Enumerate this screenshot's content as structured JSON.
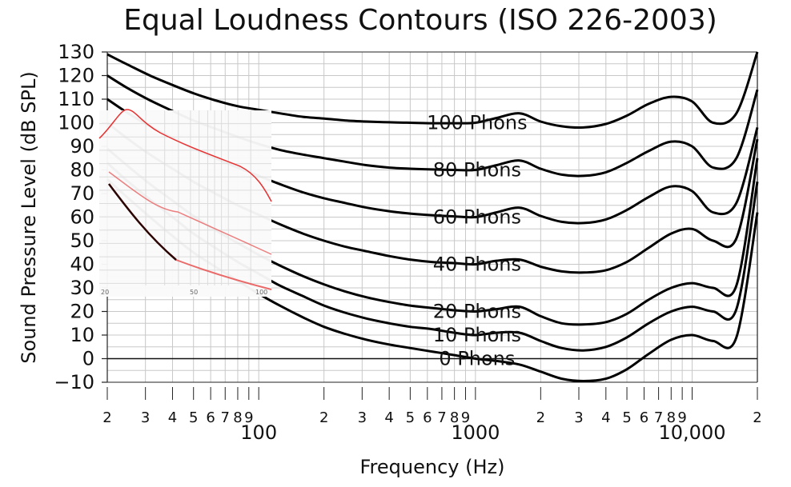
{
  "chart_data": {
    "type": "line",
    "title": "Equal Loudness Contours (ISO 226-2003)",
    "xlabel": "Frequency (Hz)",
    "ylabel": "Sound Pressure Level (dB SPL)",
    "x_scale": "log",
    "xlim": [
      20,
      20000
    ],
    "ylim": [
      -10,
      130
    ],
    "y_ticks": [
      "130",
      "120",
      "110",
      "100",
      "90",
      "80",
      "70",
      "60",
      "50",
      "40",
      "30",
      "20",
      "10",
      "0",
      "−10"
    ],
    "x_tick_labels": [
      {
        "x": 20,
        "label": "2",
        "major": false
      },
      {
        "x": 30,
        "label": "3",
        "major": false
      },
      {
        "x": 40,
        "label": "4",
        "major": false
      },
      {
        "x": 50,
        "label": "5",
        "major": false
      },
      {
        "x": 60,
        "label": "6",
        "major": false
      },
      {
        "x": 70,
        "label": "7",
        "major": false
      },
      {
        "x": 80,
        "label": "8",
        "major": false
      },
      {
        "x": 90,
        "label": "9",
        "major": false
      },
      {
        "x": 100,
        "label": "100",
        "major": true
      },
      {
        "x": 200,
        "label": "2",
        "major": false
      },
      {
        "x": 300,
        "label": "3",
        "major": false
      },
      {
        "x": 400,
        "label": "4",
        "major": false
      },
      {
        "x": 500,
        "label": "5",
        "major": false
      },
      {
        "x": 600,
        "label": "6",
        "major": false
      },
      {
        "x": 700,
        "label": "7",
        "major": false
      },
      {
        "x": 800,
        "label": "8",
        "major": false
      },
      {
        "x": 900,
        "label": "9",
        "major": false
      },
      {
        "x": 1000,
        "label": "1000",
        "major": true
      },
      {
        "x": 2000,
        "label": "2",
        "major": false
      },
      {
        "x": 3000,
        "label": "3",
        "major": false
      },
      {
        "x": 4000,
        "label": "4",
        "major": false
      },
      {
        "x": 5000,
        "label": "5",
        "major": false
      },
      {
        "x": 6000,
        "label": "6",
        "major": false
      },
      {
        "x": 7000,
        "label": "7",
        "major": false
      },
      {
        "x": 8000,
        "label": "8",
        "major": false
      },
      {
        "x": 9000,
        "label": "9",
        "major": false
      },
      {
        "x": 10000,
        "label": "10,000",
        "major": true
      },
      {
        "x": 20000,
        "label": "2",
        "major": false
      }
    ],
    "grid": true,
    "zero_line": 0,
    "series": [
      {
        "name": "100 Phons",
        "label_at": [
          1000,
          100
        ],
        "x": [
          20,
          25,
          31.5,
          40,
          50,
          63,
          80,
          100,
          125,
          160,
          200,
          250,
          315,
          400,
          500,
          630,
          800,
          1000,
          1250,
          1600,
          2000,
          2500,
          3150,
          4000,
          5000,
          6300,
          8000,
          10000,
          12500,
          16000,
          20000
        ],
        "values": [
          129,
          124.5,
          120,
          116,
          112.5,
          109.5,
          107,
          105.5,
          104,
          102.5,
          101.8,
          101,
          100.5,
          100.2,
          100,
          99.8,
          99.8,
          100,
          102,
          104,
          100.5,
          98.5,
          98,
          99.5,
          103,
          108,
          111,
          109,
          100,
          104,
          130
        ]
      },
      {
        "name": "80 Phons",
        "label_at": [
          1000,
          80
        ],
        "x": [
          20,
          25,
          31.5,
          40,
          50,
          63,
          80,
          100,
          125,
          160,
          200,
          250,
          315,
          400,
          500,
          630,
          800,
          1000,
          1250,
          1600,
          2000,
          2500,
          3150,
          4000,
          5000,
          6300,
          8000,
          10000,
          12500,
          16000,
          20000
        ],
        "values": [
          120,
          114.5,
          109.5,
          105,
          101,
          97.5,
          94,
          91,
          88.5,
          86.5,
          85,
          83.5,
          82,
          81,
          80.5,
          80.2,
          80,
          80,
          82,
          84,
          80.5,
          78,
          77.5,
          79,
          83,
          88,
          92,
          90,
          81,
          85,
          114
        ]
      },
      {
        "name": "60 Phons",
        "label_at": [
          1000,
          60
        ],
        "x": [
          20,
          25,
          31.5,
          40,
          50,
          63,
          80,
          100,
          125,
          160,
          200,
          250,
          315,
          400,
          500,
          630,
          800,
          1000,
          1250,
          1600,
          2000,
          2500,
          3150,
          4000,
          5000,
          6300,
          8000,
          10000,
          12500,
          16000,
          20000
        ],
        "values": [
          110,
          104,
          98.5,
          93.5,
          89,
          85,
          81,
          77.5,
          74,
          70.5,
          68,
          66,
          64,
          62.5,
          61.5,
          60.8,
          60.3,
          60,
          62,
          64,
          60.5,
          58,
          57.5,
          59,
          63,
          68.5,
          73,
          71,
          62,
          66,
          98
        ]
      },
      {
        "name": "40 Phons",
        "label_at": [
          1000,
          40
        ],
        "x": [
          20,
          25,
          31.5,
          40,
          50,
          63,
          80,
          100,
          125,
          160,
          200,
          250,
          315,
          400,
          500,
          630,
          800,
          1000,
          1250,
          1600,
          2000,
          2500,
          3150,
          4000,
          5000,
          6300,
          8000,
          10000,
          12500,
          16000,
          20000
        ],
        "values": [
          100,
          93,
          86.5,
          80.5,
          75,
          70,
          65,
          61,
          57,
          53,
          50,
          47.5,
          45.5,
          43.5,
          42,
          41,
          40.5,
          40,
          41.5,
          42,
          39,
          37,
          36.5,
          37.5,
          41,
          47,
          53,
          55,
          50,
          51,
          93
        ]
      },
      {
        "name": "20 Phons",
        "label_at": [
          1000,
          20
        ],
        "x": [
          20,
          25,
          31.5,
          40,
          50,
          63,
          80,
          100,
          125,
          160,
          200,
          250,
          315,
          400,
          500,
          630,
          800,
          1000,
          1250,
          1600,
          2000,
          2500,
          3150,
          4000,
          5000,
          6300,
          8000,
          10000,
          12500,
          16000,
          20000
        ],
        "values": [
          89,
          81.5,
          74,
          67,
          60.5,
          54.5,
          49,
          44,
          39.5,
          35,
          31.5,
          28.5,
          26,
          24,
          22.5,
          21.5,
          20.5,
          20,
          21,
          22,
          18,
          15,
          14.5,
          15.5,
          19,
          25,
          30,
          32,
          30,
          31,
          85
        ]
      },
      {
        "name": "10 Phons",
        "label_at": [
          1000,
          10
        ],
        "x": [
          20,
          25,
          31.5,
          40,
          50,
          63,
          80,
          100,
          125,
          160,
          200,
          250,
          315,
          400,
          500,
          630,
          800,
          1000,
          1250,
          1600,
          2000,
          2500,
          3150,
          4000,
          5000,
          6300,
          8000,
          10000,
          12500,
          16000,
          20000
        ],
        "values": [
          83,
          75,
          67.5,
          60,
          53,
          47,
          41,
          36,
          31,
          26.5,
          22.5,
          19.5,
          17,
          15,
          13.5,
          12.5,
          11,
          10,
          11,
          11,
          7.5,
          4.5,
          3.5,
          5,
          9,
          15,
          20,
          22,
          20,
          21,
          75
        ]
      },
      {
        "name": "0 Phons",
        "label_at": [
          1000,
          0
        ],
        "x": [
          20,
          25,
          31.5,
          40,
          50,
          63,
          80,
          100,
          125,
          160,
          200,
          250,
          315,
          400,
          500,
          630,
          800,
          1000,
          1250,
          1600,
          2000,
          2500,
          3150,
          4000,
          5000,
          6300,
          8000,
          10000,
          12500,
          16000,
          20000
        ],
        "values": [
          76,
          68,
          60,
          52,
          45,
          39,
          33,
          27.5,
          22.5,
          17.5,
          13.5,
          10.5,
          8,
          6,
          4.5,
          3,
          1.5,
          0,
          -1,
          -2.5,
          -5.5,
          -8.5,
          -9.5,
          -8.5,
          -4.5,
          2,
          8,
          10,
          7.5,
          9,
          62
        ]
      }
    ],
    "inset": {
      "x_tick_labels": [
        "20",
        "50",
        "100"
      ]
    }
  }
}
